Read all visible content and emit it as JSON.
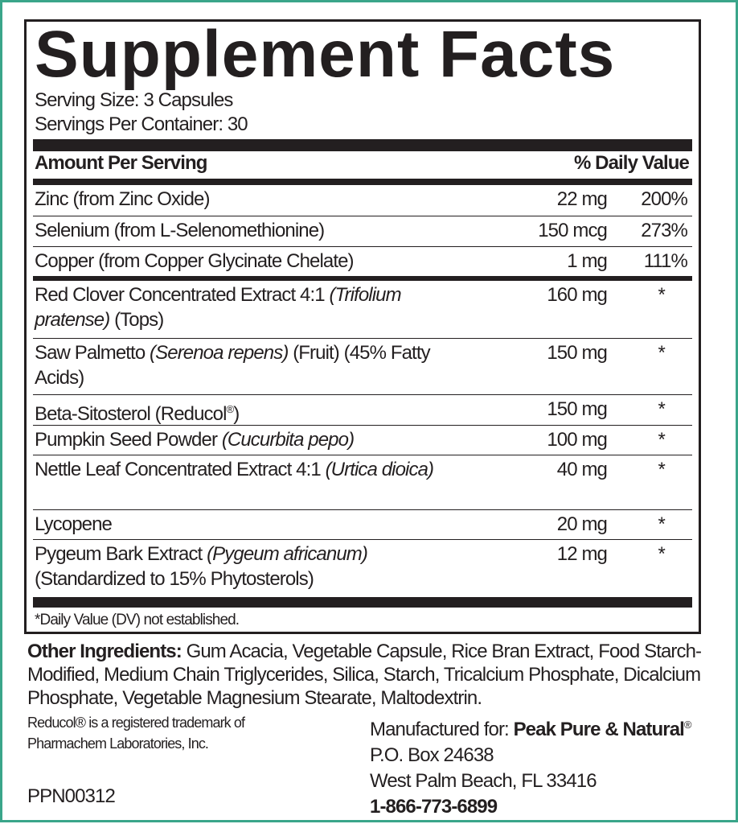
{
  "title": "Supplement Facts",
  "serving_size": "Serving Size: 3 Capsules",
  "servings_per_container": "Servings Per Container: 30",
  "header": {
    "amount": "Amount Per Serving",
    "dv": "% Daily Value"
  },
  "rows": [
    {
      "name": "Zinc (from Zinc Oxide)",
      "amount": "22 mg",
      "dv": "200%"
    },
    {
      "name": "Selenium (from L-Selenomethionine)",
      "amount": "150 mcg",
      "dv": "273%"
    },
    {
      "name": "Copper (from Copper Glycinate Chelate)",
      "amount": "1 mg",
      "dv": "111%"
    },
    {
      "name_a": "Red Clover Concentrated Extract 4:1 ",
      "name_i": "(Trifolium pratense)",
      "name_b": " (Tops)",
      "amount": "160 mg",
      "dv": "*"
    },
    {
      "name_a": "Saw Palmetto ",
      "name_i": "(Serenoa repens)",
      "name_b": " (Fruit) (45% Fatty Acids)",
      "amount": "150 mg",
      "dv": "*"
    },
    {
      "name_a": "Beta-Sitosterol (Reducol",
      "name_sup": "®",
      "name_b": ")",
      "amount": "150 mg",
      "dv": "*"
    },
    {
      "name_a": "Pumpkin Seed Powder ",
      "name_i": "(Cucurbita pepo)",
      "amount": "100 mg",
      "dv": "*"
    },
    {
      "name_a": "Nettle Leaf Concentrated Extract 4:1 ",
      "name_i": "(Urtica dioica)",
      "amount": "40 mg",
      "dv": "*"
    },
    {
      "name": "Lycopene",
      "amount": "20 mg",
      "dv": "*"
    },
    {
      "name_a": "Pygeum Bark Extract ",
      "name_i": "(Pygeum africanum)",
      "name_b": " (Standardized to 15% Phytosterols)",
      "amount": "12 mg",
      "dv": "*"
    }
  ],
  "footnote": "*Daily Value (DV) not established.",
  "other_ingredients": {
    "label": "Other Ingredients:",
    "text": " Gum Acacia, Vegetable Capsule, Rice Bran Extract, Food Starch-Modified, Medium Chain Triglycerides, Silica, Starch, Tricalcium Phosphate, Dicalcium Phosphate, Vegetable Magnesium Stearate, Maltodextrin."
  },
  "trademark": {
    "line1": "Reducol® is a registered trademark of",
    "line2": "Pharmachem Laboratories, Inc."
  },
  "code": "PPN00312",
  "manufacturer": {
    "prefix": "Manufactured for: ",
    "name": "Peak Pure & Natural",
    "reg": "®",
    "address1": "P.O. Box 24638",
    "address2": "West Palm Beach, FL 33416",
    "phone": "1-866-773-6899"
  },
  "colors": {
    "border": "#3aa58a",
    "text": "#231f20"
  }
}
